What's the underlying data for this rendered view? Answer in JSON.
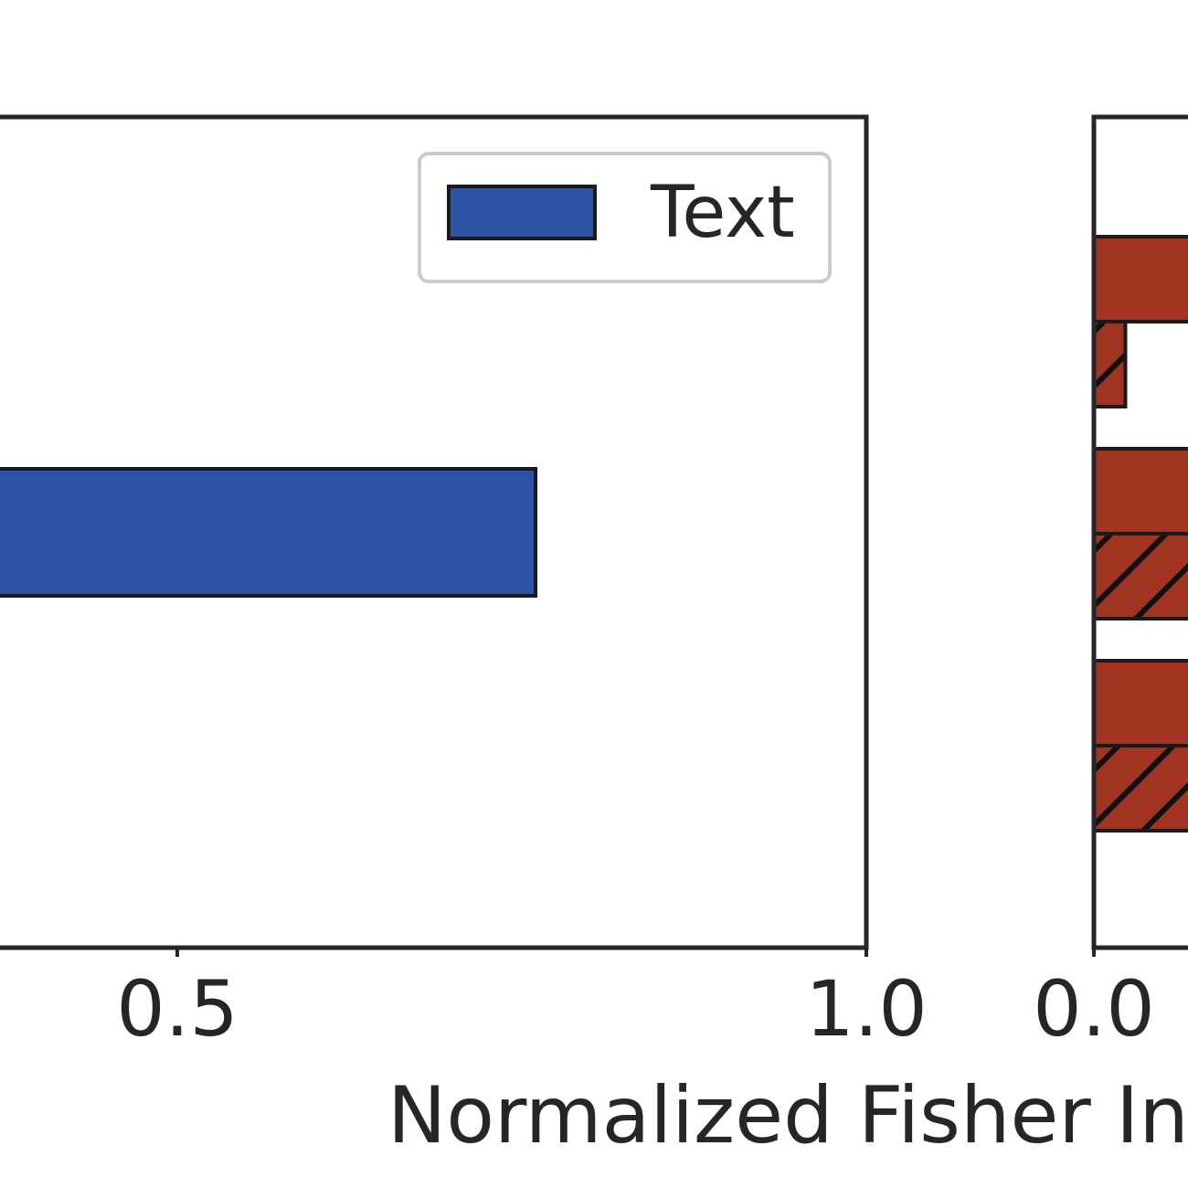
{
  "chart_data": [
    {
      "type": "bar",
      "orientation": "horizontal",
      "xlim": [
        0.0,
        1.0
      ],
      "xticks": [
        {
          "value": 0.5,
          "label": "0.5"
        },
        {
          "value": 1.0,
          "label": "1.0"
        }
      ],
      "series": [
        {
          "name": "Text",
          "values": [
            0.76
          ]
        }
      ],
      "legend": {
        "entries": [
          "Text"
        ],
        "placement": "top-right"
      },
      "grid": false,
      "colors": {
        "Text": "#2e52a6"
      }
    },
    {
      "type": "bar",
      "orientation": "horizontal",
      "xlim": [
        0.0,
        null
      ],
      "xticks": [
        {
          "value": 0.0,
          "label": "0.0"
        }
      ],
      "series": [
        {
          "values": [
            0.2,
            0.2,
            0.2
          ],
          "hatch": "none"
        },
        {
          "values": [
            0.015,
            0.2,
            0.2
          ],
          "hatch": "diagonal"
        }
      ],
      "grid": false,
      "colors": {
        "bar": "#a13421",
        "edge": "#1a1a1a"
      }
    }
  ],
  "xlabel": "Normalized Fisher In"
}
